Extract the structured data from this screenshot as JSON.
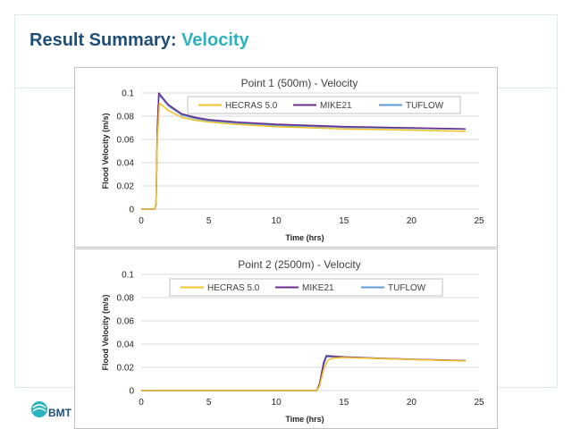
{
  "slide": {
    "title_prefix": "Result Summary:",
    "title_accent": "Velocity",
    "logo_text": "BMT"
  },
  "colors": {
    "title": "#1f4e79",
    "accent": "#2bb3bf",
    "series": {
      "HECRAS 5.0": "#f2c12e",
      "MIKE21": "#6a2f8e",
      "TUFLOW": "#5b9bd5"
    }
  },
  "chart_data": [
    {
      "type": "line",
      "title": "Point 1 (500m) - Velocity",
      "xlabel": "Time (hrs)",
      "ylabel": "Flood Velocity (m/s)",
      "xlim": [
        0,
        25
      ],
      "ylim": [
        0,
        0.1
      ],
      "xticks": [
        0,
        5,
        10,
        15,
        20,
        25
      ],
      "yticks": [
        0,
        0.02,
        0.04,
        0.06,
        0.08,
        0.1
      ],
      "grid": true,
      "legend": "top",
      "series": [
        {
          "name": "HECRAS 5.0",
          "x": [
            0,
            1.0,
            1.1,
            1.2,
            1.35,
            1.6,
            2,
            3,
            4,
            5,
            7,
            10,
            15,
            20,
            24
          ],
          "y": [
            0,
            0,
            0.005,
            0.06,
            0.091,
            0.089,
            0.085,
            0.079,
            0.0765,
            0.075,
            0.073,
            0.071,
            0.069,
            0.068,
            0.067
          ]
        },
        {
          "name": "MIKE21",
          "x": [
            0,
            1.0,
            1.1,
            1.2,
            1.3,
            1.5,
            2,
            3,
            4,
            5,
            7,
            10,
            15,
            20,
            24
          ],
          "y": [
            0,
            0,
            0.004,
            0.07,
            0.1,
            0.097,
            0.09,
            0.082,
            0.079,
            0.077,
            0.075,
            0.073,
            0.071,
            0.07,
            0.069
          ]
        },
        {
          "name": "TUFLOW",
          "x": [
            0,
            1.0,
            1.1,
            1.2,
            1.3,
            1.5,
            2,
            3,
            4,
            5,
            7,
            10,
            15,
            20,
            24
          ],
          "y": [
            0,
            0,
            0.004,
            0.068,
            0.098,
            0.096,
            0.089,
            0.081,
            0.078,
            0.076,
            0.074,
            0.072,
            0.0705,
            0.0695,
            0.069
          ]
        }
      ]
    },
    {
      "type": "line",
      "title": "Point 2 (2500m) - Velocity",
      "xlabel": "Time (hrs)",
      "ylabel": "Flood Velocity (m/s)",
      "xlim": [
        0,
        25
      ],
      "ylim": [
        0,
        0.1
      ],
      "xticks": [
        0,
        5,
        10,
        15,
        20,
        25
      ],
      "yticks": [
        0,
        0.02,
        0.04,
        0.06,
        0.08,
        0.1
      ],
      "grid": true,
      "legend": "top",
      "series": [
        {
          "name": "HECRAS 5.0",
          "x": [
            0,
            13.0,
            13.2,
            13.5,
            13.8,
            14.2,
            15,
            17,
            20,
            24
          ],
          "y": [
            0,
            0,
            0.004,
            0.018,
            0.026,
            0.028,
            0.0285,
            0.0278,
            0.0268,
            0.0255
          ]
        },
        {
          "name": "MIKE21",
          "x": [
            0,
            13.0,
            13.2,
            13.5,
            13.7,
            14.0,
            15,
            17,
            20,
            24
          ],
          "y": [
            0,
            0,
            0.006,
            0.024,
            0.03,
            0.0298,
            0.029,
            0.028,
            0.027,
            0.0258
          ]
        },
        {
          "name": "TUFLOW",
          "x": [
            0,
            13.0,
            13.2,
            13.5,
            13.7,
            14.0,
            15,
            17,
            20,
            24
          ],
          "y": [
            0,
            0,
            0.005,
            0.022,
            0.029,
            0.029,
            0.0288,
            0.0279,
            0.0268,
            0.0256
          ]
        }
      ]
    }
  ]
}
